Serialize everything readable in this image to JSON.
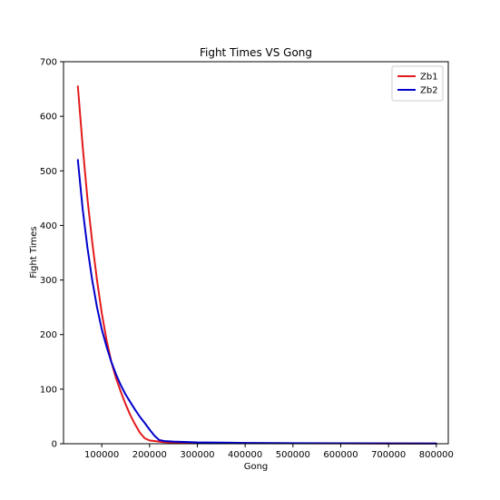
{
  "chart_data": {
    "type": "line",
    "title": "Fight Times VS Gong",
    "xlabel": "Gong",
    "ylabel": "Fight Times",
    "xlim": [
      20000,
      825000
    ],
    "ylim": [
      0,
      700
    ],
    "xticks": [
      100000,
      200000,
      300000,
      400000,
      500000,
      600000,
      700000,
      800000
    ],
    "yticks": [
      0,
      100,
      200,
      300,
      400,
      500,
      600,
      700
    ],
    "grid": false,
    "legend_position": "top-right",
    "series": [
      {
        "name": "Zb1",
        "color": "#e31a1c",
        "x": [
          50000,
          60000,
          70000,
          80000,
          90000,
          100000,
          110000,
          120000,
          130000,
          140000,
          150000,
          160000,
          170000,
          180000,
          190000,
          200000,
          210000,
          220000,
          230000,
          250000,
          300000,
          400000,
          500000,
          600000,
          700000,
          800000
        ],
        "y": [
          655,
          545,
          450,
          370,
          300,
          240,
          190,
          150,
          120,
          95,
          72,
          52,
          35,
          20,
          10,
          6,
          5,
          4,
          3,
          2,
          1.5,
          1,
          0.8,
          0.6,
          0.5,
          0.4
        ]
      },
      {
        "name": "Zb2",
        "color": "#0000cc",
        "x": [
          50000,
          60000,
          70000,
          80000,
          90000,
          100000,
          110000,
          120000,
          130000,
          140000,
          150000,
          160000,
          170000,
          180000,
          190000,
          200000,
          210000,
          220000,
          230000,
          250000,
          300000,
          400000,
          500000,
          600000,
          700000,
          800000
        ],
        "y": [
          520,
          430,
          360,
          300,
          250,
          210,
          178,
          150,
          127,
          107,
          90,
          76,
          62,
          49,
          38,
          26,
          15,
          7,
          5,
          4,
          2.5,
          1.5,
          1,
          0.8,
          0.6,
          0.5
        ]
      }
    ]
  }
}
